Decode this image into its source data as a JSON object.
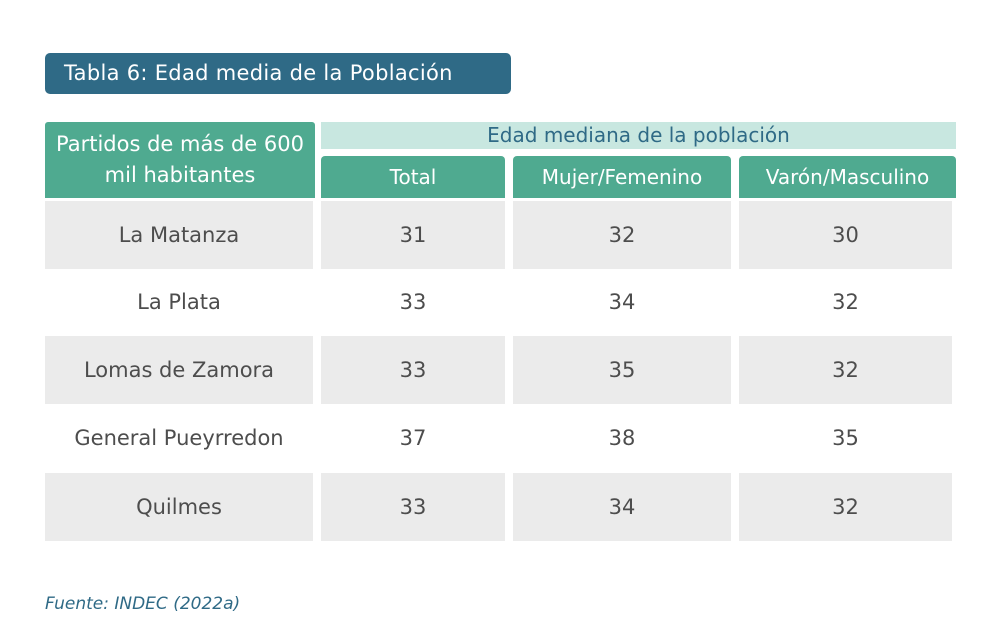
{
  "title": "Tabla 6: Edad media de la Población",
  "header": {
    "row_label": "Partidos de más de 600 mil habitantes",
    "group_label": "Edad mediana de la población",
    "columns": [
      "Total",
      "Mujer/Femenino",
      "Varón/Masculino"
    ]
  },
  "rows": [
    {
      "name": "La Matanza",
      "values": [
        "31",
        "32",
        "30"
      ]
    },
    {
      "name": "La Plata",
      "values": [
        "33",
        "34",
        "32"
      ]
    },
    {
      "name": "Lomas de Zamora",
      "values": [
        "33",
        "35",
        "32"
      ]
    },
    {
      "name": "General Pueyrredon",
      "values": [
        "37",
        "38",
        "35"
      ]
    },
    {
      "name": "Quilmes",
      "values": [
        "33",
        "34",
        "32"
      ]
    }
  ],
  "source": "Fuente: INDEC (2022a)",
  "colors": {
    "title_bg": "#2f6a86",
    "header_bg": "#4faa90",
    "group_bg": "#c8e7e0",
    "row_shade": "#ebebeb"
  }
}
